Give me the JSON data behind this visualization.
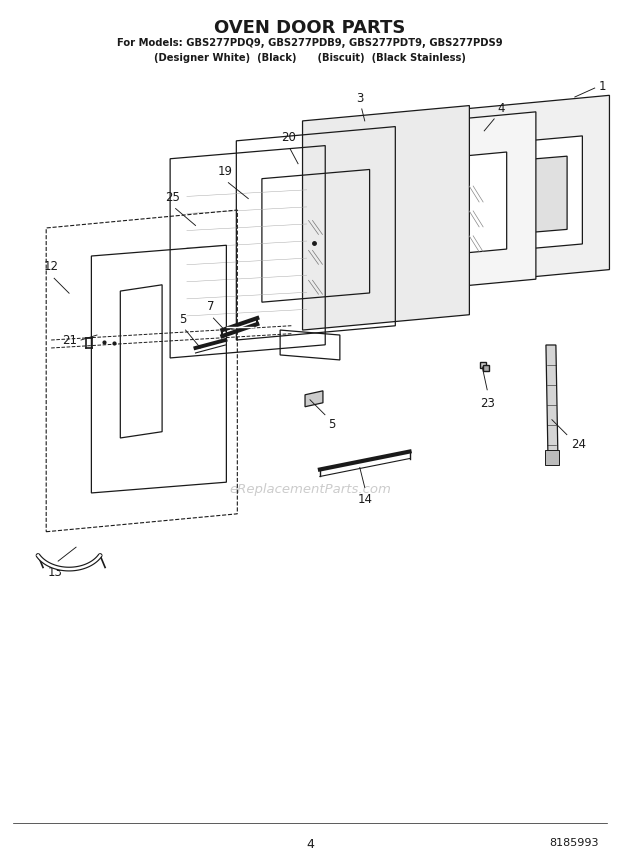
{
  "title": "OVEN DOOR PARTS",
  "subtitle1": "For Models: GBS277PDQ9, GBS277PDB9, GBS277PDT9, GBS277PDS9",
  "subtitle2": "(Designer White)  (Black)      (Biscuit)  (Black Stainless)",
  "page_number": "4",
  "part_number": "8185993",
  "background_color": "#ffffff",
  "line_color": "#1a1a1a",
  "watermark": "eReplacementParts.com"
}
